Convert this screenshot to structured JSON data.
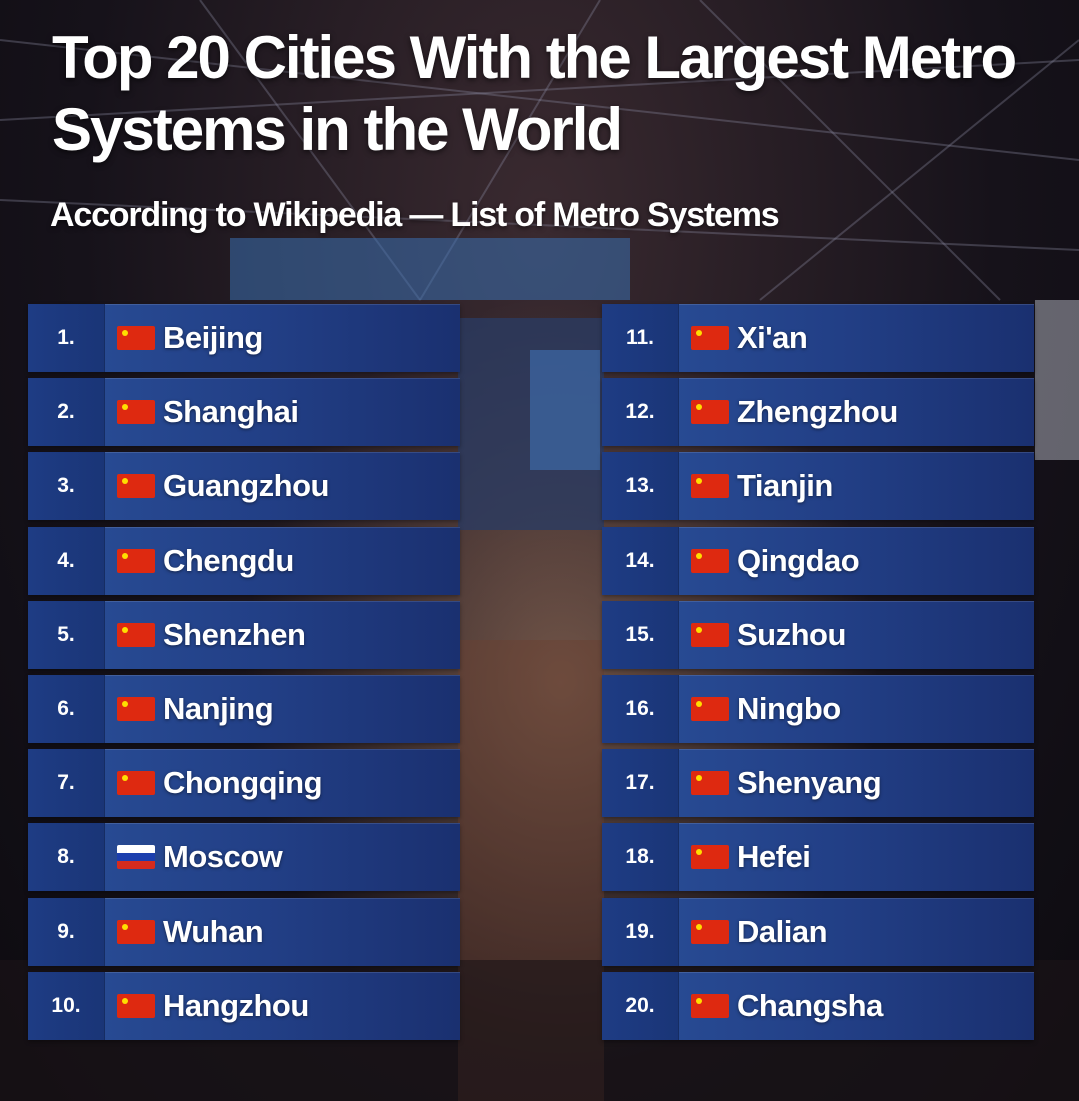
{
  "title": "Top 20 Cities With the Largest Metro Systems in the World",
  "subtitle": "According to Wikipedia — List of Metro Systems",
  "cities": [
    {
      "rank": "1.",
      "name": "Beijing",
      "flag": "china-flag-icon"
    },
    {
      "rank": "2.",
      "name": "Shanghai",
      "flag": "china-flag-icon"
    },
    {
      "rank": "3.",
      "name": "Guangzhou",
      "flag": "china-flag-icon"
    },
    {
      "rank": "4.",
      "name": "Chengdu",
      "flag": "china-flag-icon"
    },
    {
      "rank": "5.",
      "name": "Shenzhen",
      "flag": "china-flag-icon"
    },
    {
      "rank": "6.",
      "name": "Nanjing",
      "flag": "china-flag-icon"
    },
    {
      "rank": "7.",
      "name": "Chongqing",
      "flag": "china-flag-icon"
    },
    {
      "rank": "8.",
      "name": "Moscow",
      "flag": "russia-flag-icon"
    },
    {
      "rank": "9.",
      "name": "Wuhan",
      "flag": "china-flag-icon"
    },
    {
      "rank": "10.",
      "name": "Hangzhou",
      "flag": "china-flag-icon"
    },
    {
      "rank": "11.",
      "name": "Xi'an",
      "flag": "china-flag-icon"
    },
    {
      "rank": "12.",
      "name": "Zhengzhou",
      "flag": "china-flag-icon"
    },
    {
      "rank": "13.",
      "name": "Tianjin",
      "flag": "china-flag-icon"
    },
    {
      "rank": "14.",
      "name": "Qingdao",
      "flag": "china-flag-icon"
    },
    {
      "rank": "15.",
      "name": "Suzhou",
      "flag": "china-flag-icon"
    },
    {
      "rank": "16.",
      "name": "Ningbo",
      "flag": "china-flag-icon"
    },
    {
      "rank": "17.",
      "name": "Shenyang",
      "flag": "china-flag-icon"
    },
    {
      "rank": "18.",
      "name": "Hefei",
      "flag": "china-flag-icon"
    },
    {
      "rank": "19.",
      "name": "Dalian",
      "flag": "china-flag-icon"
    },
    {
      "rank": "20.",
      "name": "Changsha",
      "flag": "china-flag-icon"
    }
  ],
  "colors": {
    "row": "#2a4f98",
    "rank_cell": "#1e3c84",
    "china_flag": "#de2910",
    "russia_flag_white": "#ffffff",
    "russia_flag_blue": "#1c3fae",
    "russia_flag_red": "#d52b1e"
  }
}
